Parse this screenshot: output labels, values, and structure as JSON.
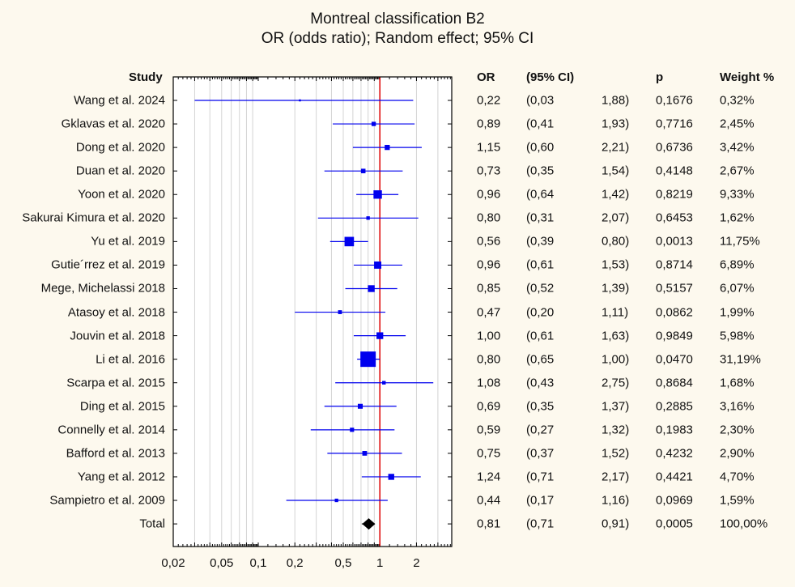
{
  "chart_data": {
    "type": "forest",
    "title": "Montreal classification B2",
    "subtitle": "OR (odds ratio); Random effect; 95% CI",
    "xscale": "log",
    "xlim": [
      0.02,
      3.9
    ],
    "x_tick_values": [
      0.02,
      0.05,
      0.1,
      0.2,
      0.5,
      1,
      2
    ],
    "x_tick_labels": [
      "0,02",
      "0,05",
      "0,1",
      "0,2",
      "0,5",
      "1",
      "2"
    ],
    "gridlines": [
      0.03,
      0.04,
      0.05,
      0.06,
      0.07,
      0.08,
      0.09,
      0.2,
      0.3,
      0.4,
      0.5,
      0.6,
      0.7,
      0.8,
      0.9,
      2,
      3
    ],
    "reference_line": 1,
    "colors": {
      "study": "#0000ee",
      "total": "#000000",
      "reference": "#dd0000",
      "grid": "#d4d4d4"
    },
    "headers": {
      "study": "Study",
      "or": "OR",
      "ci": "(95% CI)",
      "p": "p",
      "weight": "Weight %"
    },
    "studies": [
      {
        "name": "Wang et al. 2024",
        "or": 0.22,
        "lo": 0.03,
        "hi": 1.88,
        "or_text": "0,22",
        "lo_text": "(0,03",
        "hi_text": "1,88)",
        "p": "0,1676",
        "weight_pct": 0.32,
        "weight": "0,32%"
      },
      {
        "name": "Gklavas et al. 2020",
        "or": 0.89,
        "lo": 0.41,
        "hi": 1.93,
        "or_text": "0,89",
        "lo_text": "(0,41",
        "hi_text": "1,93)",
        "p": "0,7716",
        "weight_pct": 2.45,
        "weight": "2,45%"
      },
      {
        "name": "Dong et al. 2020",
        "or": 1.15,
        "lo": 0.6,
        "hi": 2.21,
        "or_text": "1,15",
        "lo_text": "(0,60",
        "hi_text": "2,21)",
        "p": "0,6736",
        "weight_pct": 3.42,
        "weight": "3,42%"
      },
      {
        "name": "Duan et al. 2020",
        "or": 0.73,
        "lo": 0.35,
        "hi": 1.54,
        "or_text": "0,73",
        "lo_text": "(0,35",
        "hi_text": "1,54)",
        "p": "0,4148",
        "weight_pct": 2.67,
        "weight": "2,67%"
      },
      {
        "name": "Yoon et al. 2020",
        "or": 0.96,
        "lo": 0.64,
        "hi": 1.42,
        "or_text": "0,96",
        "lo_text": "(0,64",
        "hi_text": "1,42)",
        "p": "0,8219",
        "weight_pct": 9.33,
        "weight": "9,33%"
      },
      {
        "name": "Sakurai Kimura et al. 2020",
        "or": 0.8,
        "lo": 0.31,
        "hi": 2.07,
        "or_text": "0,80",
        "lo_text": "(0,31",
        "hi_text": "2,07)",
        "p": "0,6453",
        "weight_pct": 1.62,
        "weight": "1,62%"
      },
      {
        "name": "Yu et al. 2019",
        "or": 0.56,
        "lo": 0.39,
        "hi": 0.8,
        "or_text": "0,56",
        "lo_text": "(0,39",
        "hi_text": "0,80)",
        "p": "0,0013",
        "weight_pct": 11.75,
        "weight": "11,75%"
      },
      {
        "name": "Gutie´rrez et al. 2019",
        "or": 0.96,
        "lo": 0.61,
        "hi": 1.53,
        "or_text": "0,96",
        "lo_text": "(0,61",
        "hi_text": "1,53)",
        "p": "0,8714",
        "weight_pct": 6.89,
        "weight": "6,89%"
      },
      {
        "name": "Mege, Michelassi 2018",
        "or": 0.85,
        "lo": 0.52,
        "hi": 1.39,
        "or_text": "0,85",
        "lo_text": "(0,52",
        "hi_text": "1,39)",
        "p": "0,5157",
        "weight_pct": 6.07,
        "weight": "6,07%"
      },
      {
        "name": "Atasoy et al. 2018",
        "or": 0.47,
        "lo": 0.2,
        "hi": 1.11,
        "or_text": "0,47",
        "lo_text": "(0,20",
        "hi_text": "1,11)",
        "p": "0,0862",
        "weight_pct": 1.99,
        "weight": "1,99%"
      },
      {
        "name": "Jouvin et al. 2018",
        "or": 1.0,
        "lo": 0.61,
        "hi": 1.63,
        "or_text": "1,00",
        "lo_text": "(0,61",
        "hi_text": "1,63)",
        "p": "0,9849",
        "weight_pct": 5.98,
        "weight": "5,98%"
      },
      {
        "name": "Li et al. 2016",
        "or": 0.8,
        "lo": 0.65,
        "hi": 1.0,
        "or_text": "0,80",
        "lo_text": "(0,65",
        "hi_text": "1,00)",
        "p": "0,0470",
        "weight_pct": 31.19,
        "weight": "31,19%"
      },
      {
        "name": "Scarpa et al. 2015",
        "or": 1.08,
        "lo": 0.43,
        "hi": 2.75,
        "or_text": "1,08",
        "lo_text": "(0,43",
        "hi_text": "2,75)",
        "p": "0,8684",
        "weight_pct": 1.68,
        "weight": "1,68%"
      },
      {
        "name": "Ding et al. 2015",
        "or": 0.69,
        "lo": 0.35,
        "hi": 1.37,
        "or_text": "0,69",
        "lo_text": "(0,35",
        "hi_text": "1,37)",
        "p": "0,2885",
        "weight_pct": 3.16,
        "weight": "3,16%"
      },
      {
        "name": "Connelly et al. 2014",
        "or": 0.59,
        "lo": 0.27,
        "hi": 1.32,
        "or_text": "0,59",
        "lo_text": "(0,27",
        "hi_text": "1,32)",
        "p": "0,1983",
        "weight_pct": 2.3,
        "weight": "2,30%"
      },
      {
        "name": "Bafford et al. 2013",
        "or": 0.75,
        "lo": 0.37,
        "hi": 1.52,
        "or_text": "0,75",
        "lo_text": "(0,37",
        "hi_text": "1,52)",
        "p": "0,4232",
        "weight_pct": 2.9,
        "weight": "2,90%"
      },
      {
        "name": "Yang et al. 2012",
        "or": 1.24,
        "lo": 0.71,
        "hi": 2.17,
        "or_text": "1,24",
        "lo_text": "(0,71",
        "hi_text": "2,17)",
        "p": "0,4421",
        "weight_pct": 4.7,
        "weight": "4,70%"
      },
      {
        "name": "Sampietro et al. 2009",
        "or": 0.44,
        "lo": 0.17,
        "hi": 1.16,
        "or_text": "0,44",
        "lo_text": "(0,17",
        "hi_text": "1,16)",
        "p": "0,0969",
        "weight_pct": 1.59,
        "weight": "1,59%"
      }
    ],
    "total": {
      "name": "Total",
      "or": 0.81,
      "lo": 0.71,
      "hi": 0.91,
      "or_text": "0,81",
      "lo_text": "(0,71",
      "hi_text": "0,91)",
      "p": "0,0005",
      "weight_pct": 100.0,
      "weight": "100,00%"
    }
  }
}
